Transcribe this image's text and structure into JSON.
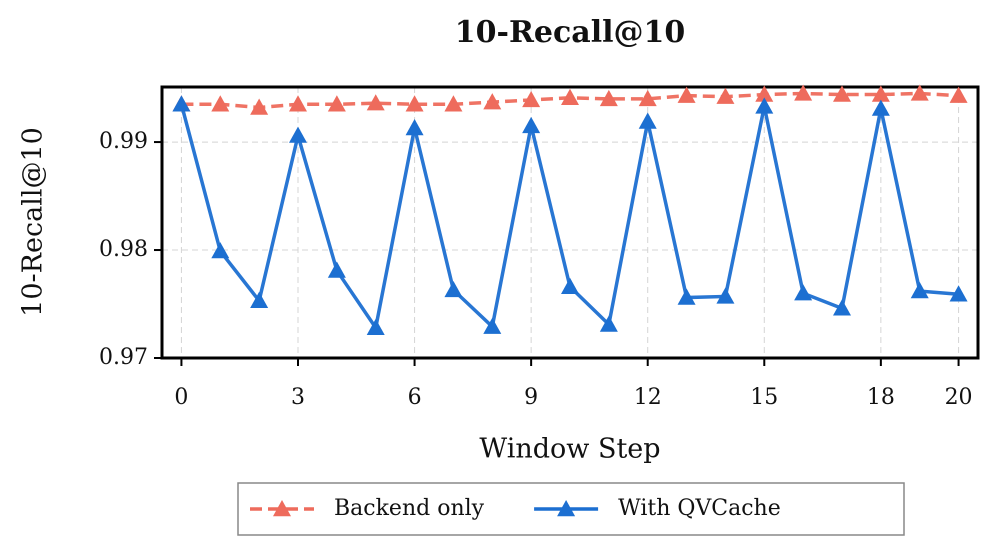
{
  "chart_data": {
    "type": "line",
    "title": "10-Recall@10",
    "x_label": "Window Step",
    "y_label": "10-Recall@10",
    "x": [
      0,
      1,
      2,
      3,
      4,
      5,
      6,
      7,
      8,
      9,
      10,
      11,
      12,
      13,
      14,
      15,
      16,
      17,
      18,
      19,
      20
    ],
    "series": [
      {
        "name": "Backend only",
        "color": "#ee6b5c",
        "dashed": true,
        "values": [
          0.9935,
          0.9935,
          0.9932,
          0.9935,
          0.9935,
          0.9936,
          0.9935,
          0.9935,
          0.9937,
          0.9939,
          0.9941,
          0.994,
          0.994,
          0.9943,
          0.9942,
          0.9944,
          0.9945,
          0.9944,
          0.9944,
          0.9945,
          0.9943
        ]
      },
      {
        "name": "With QVCache",
        "color": "#1c6fd1",
        "dashed": false,
        "values": [
          0.9935,
          0.9799,
          0.9753,
          0.9906,
          0.9781,
          0.9728,
          0.9913,
          0.9763,
          0.9729,
          0.9915,
          0.9766,
          0.9731,
          0.9919,
          0.9756,
          0.9757,
          0.9933,
          0.976,
          0.9746,
          0.9931,
          0.9762,
          0.9759
        ]
      }
    ],
    "xlim": [
      -0.5,
      20.5
    ],
    "xticks": [
      0,
      3,
      6,
      9,
      12,
      15,
      18,
      20
    ],
    "ylim": [
      0.97,
      0.9951
    ],
    "yticks": [
      0.97,
      0.98,
      0.99
    ],
    "grid": true,
    "legend": "bottom"
  }
}
